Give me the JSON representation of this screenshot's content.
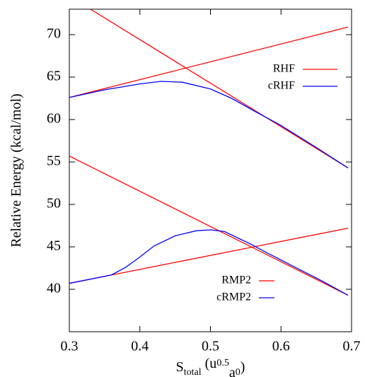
{
  "chart_data": {
    "type": "line",
    "xlabel_parts": [
      "S",
      "total",
      " (u",
      "0.5",
      "a",
      "0",
      ")"
    ],
    "ylabel": "Relative Energy (kcal/mol)",
    "xlim": [
      0.3,
      0.7
    ],
    "ylim": [
      35,
      73
    ],
    "xticks": [
      0.3,
      0.4,
      0.5,
      0.6,
      0.7
    ],
    "yticks": [
      40,
      45,
      50,
      55,
      60,
      65,
      70
    ],
    "series": [
      {
        "name": "RHF",
        "color": "#ff0000",
        "x": [
          0.3,
          0.695
        ],
        "values": [
          62.6,
          70.9
        ]
      },
      {
        "color": "#ff0000",
        "x": [
          0.33,
          0.695
        ],
        "values": [
          73,
          54.3
        ]
      },
      {
        "name": "cRHF",
        "color": "#0000ff",
        "x": [
          0.3,
          0.35,
          0.4,
          0.43,
          0.46,
          0.5,
          0.53,
          0.56,
          0.6,
          0.65,
          0.695
        ],
        "values": [
          62.6,
          63.5,
          64.2,
          64.5,
          64.4,
          63.6,
          62.5,
          61.1,
          59.3,
          56.7,
          54.3
        ]
      },
      {
        "name": "RMP2",
        "color": "#ff0000",
        "x": [
          0.3,
          0.695
        ],
        "values": [
          55.7,
          39.3
        ]
      },
      {
        "color": "#ff0000",
        "x": [
          0.3,
          0.695
        ],
        "values": [
          40.7,
          47.2
        ]
      },
      {
        "name": "cRMP2",
        "color": "#0000ff",
        "x": [
          0.3,
          0.36,
          0.38,
          0.4,
          0.42,
          0.45,
          0.48,
          0.5,
          0.52,
          0.54,
          0.56,
          0.58,
          0.62,
          0.66,
          0.695
        ],
        "values": [
          40.7,
          41.7,
          42.6,
          43.8,
          45.1,
          46.3,
          46.9,
          47.0,
          46.8,
          46.0,
          45.2,
          44.3,
          42.6,
          40.9,
          39.3
        ]
      }
    ]
  }
}
